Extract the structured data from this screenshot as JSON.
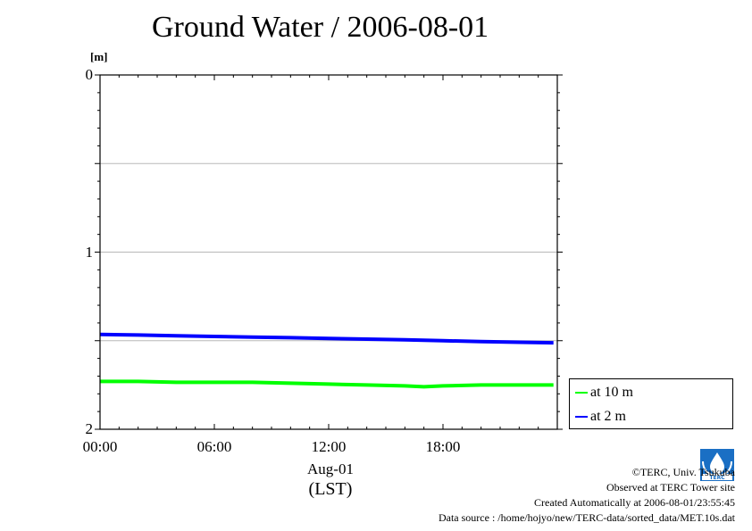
{
  "title": "Ground Water / 2006-08-01",
  "unit_label": "[m]",
  "date_label": "Aug-01",
  "timezone_label": "(LST)",
  "legend": [
    {
      "label": "at 10 m",
      "color": "#00ff00"
    },
    {
      "label": "at 2 m",
      "color": "#0000ff"
    }
  ],
  "credits": {
    "copyright": "©TERC, Univ. Tsukuba",
    "observed": "Observed at TERC Tower site",
    "created": "Created Automatically at 2006-08-01/23:55:45",
    "source": "Data source : /home/hojyo/new/TERC-data/sorted_data/MET.10s.dat"
  },
  "logo_text": "TERC",
  "chart_data": {
    "type": "line",
    "title": "Ground Water / 2006-08-01",
    "ylabel": "[m]",
    "xlabel": "Aug-01",
    "ylim": [
      2,
      0
    ],
    "y_inverted": true,
    "xlim": [
      0,
      24
    ],
    "x_ticks": [
      "00:00",
      "06:00",
      "12:00",
      "18:00"
    ],
    "x_tick_values": [
      0,
      6,
      12,
      18
    ],
    "y_ticks": [
      "0",
      "1",
      "2"
    ],
    "y_tick_values": [
      0,
      1,
      2
    ],
    "grid_y": [
      0.5,
      1.0,
      1.5
    ],
    "legend_position": "right",
    "series": [
      {
        "name": "at 10 m",
        "color": "#00ff00",
        "x": [
          0,
          2,
          4,
          6,
          8,
          10,
          12,
          14,
          16,
          17,
          18,
          20,
          22,
          23.8
        ],
        "y": [
          1.73,
          1.73,
          1.735,
          1.735,
          1.735,
          1.74,
          1.745,
          1.75,
          1.755,
          1.76,
          1.755,
          1.75,
          1.75,
          1.75
        ]
      },
      {
        "name": "at 2 m",
        "color": "#0000ff",
        "x": [
          0,
          2,
          4,
          6,
          8,
          10,
          12,
          14,
          16,
          18,
          20,
          22,
          23.8
        ],
        "y": [
          1.465,
          1.468,
          1.472,
          1.476,
          1.48,
          1.483,
          1.487,
          1.491,
          1.495,
          1.5,
          1.505,
          1.509,
          1.512
        ]
      }
    ]
  }
}
